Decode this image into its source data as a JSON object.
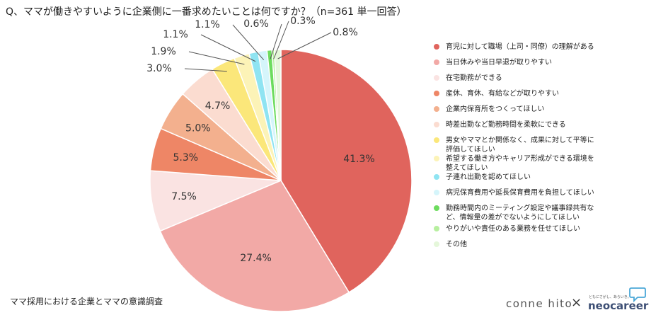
{
  "title": "Q、ママが働きやすいように企業側に一番求めたいことは何ですか？（n=361 単一回答）",
  "footer": "ママ採用における企業とママの意識調査",
  "logos": {
    "left": "conne hito",
    "separator": "×",
    "right": "neocareer",
    "right_tagline": "ともにさがし、あらいき。"
  },
  "chart_data": {
    "type": "pie",
    "title": "Q、ママが働きやすいように企業側に一番求めたいことは何ですか？（n=361 単一回答）",
    "unit": "%",
    "start": "12 o'clock",
    "direction": "clockwise",
    "legend_position": "right",
    "slices": [
      {
        "label": "育児に対して職場（上司・同僚）の理解がある",
        "value": 41.3,
        "display": "41.3%",
        "color": "#e0645d"
      },
      {
        "label": "当日休みや当日早退が取りやすい",
        "value": 27.4,
        "display": "27.4%",
        "color": "#f2a9a6"
      },
      {
        "label": "在宅勤務ができる",
        "value": 7.5,
        "display": "7.5%",
        "color": "#fae3e2"
      },
      {
        "label": "産休、育休、有給などが取りやすい",
        "value": 5.3,
        "display": "5.3%",
        "color": "#ee8666"
      },
      {
        "label": "企業内保育所をつくってほしい",
        "value": 5.0,
        "display": "5.0%",
        "color": "#f3b08e"
      },
      {
        "label": "時差出勤など勤務時間を柔軟にできる",
        "value": 4.7,
        "display": "4.7%",
        "color": "#fbdcd0"
      },
      {
        "label": "男女やママとか関係なく、成果に対して平等に\n評価してほしい",
        "value": 3.0,
        "display": "3.0%",
        "color": "#fbe77a"
      },
      {
        "label": "希望する働き方やキャリア形成ができる環境を\n整えてほしい",
        "value": 1.9,
        "display": "1.9%",
        "color": "#fcf3b7"
      },
      {
        "label": "子連れ出勤を認めてほしい",
        "value": 1.1,
        "display": "1.1%",
        "color": "#8fe4f2"
      },
      {
        "label": "病児保育費用や延長保育費用を負担してほしい",
        "value": 1.1,
        "display": "1.1%",
        "color": "#d5f5fb"
      },
      {
        "label": "勤務時間内のミーティング設定や議事録共有など、情報量の差がでないようにしてほしい",
        "value": 0.6,
        "display": "0.6%",
        "color": "#6ddc5e"
      },
      {
        "label": "やりがいや責任のある業務を任せてほしい",
        "value": 0.3,
        "display": "0.3%",
        "color": "#b7ef9f"
      },
      {
        "label": "その他",
        "value": 0.8,
        "display": "0.8%",
        "color": "#e5f7da"
      }
    ]
  }
}
